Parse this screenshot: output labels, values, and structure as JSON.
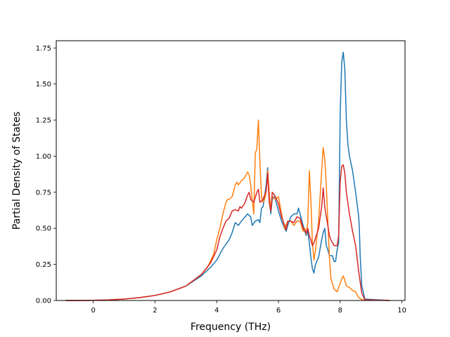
{
  "chart_data": {
    "type": "line",
    "title": "",
    "xlabel": "Frequency (THz)",
    "ylabel": "Partial Density of States",
    "xlim": [
      -1.2,
      10.1
    ],
    "ylim": [
      0,
      1.8
    ],
    "xticks": [
      0,
      2,
      4,
      6,
      8,
      10
    ],
    "xtick_labels": [
      "0",
      "2",
      "4",
      "6",
      "8",
      "10"
    ],
    "yticks": [
      0,
      0.25,
      0.5,
      0.75,
      1.0,
      1.25,
      1.5,
      1.75
    ],
    "ytick_labels": [
      "0.00",
      "0.25",
      "0.50",
      "0.75",
      "1.00",
      "1.25",
      "1.50",
      "1.75"
    ],
    "grid": false,
    "legend": "none",
    "series": [
      {
        "color": "#1f77b4",
        "points": [
          [
            -0.9,
            0
          ],
          [
            0,
            0.001
          ],
          [
            0.5,
            0.004
          ],
          [
            1.0,
            0.01
          ],
          [
            1.5,
            0.02
          ],
          [
            2.0,
            0.035
          ],
          [
            2.5,
            0.06
          ],
          [
            3.0,
            0.1
          ],
          [
            3.5,
            0.17
          ],
          [
            3.8,
            0.23
          ],
          [
            4.0,
            0.28
          ],
          [
            4.1,
            0.32
          ],
          [
            4.2,
            0.36
          ],
          [
            4.4,
            0.42
          ],
          [
            4.5,
            0.47
          ],
          [
            4.6,
            0.54
          ],
          [
            4.7,
            0.52
          ],
          [
            4.8,
            0.55
          ],
          [
            5.0,
            0.6
          ],
          [
            5.1,
            0.58
          ],
          [
            5.15,
            0.52
          ],
          [
            5.25,
            0.55
          ],
          [
            5.35,
            0.56
          ],
          [
            5.4,
            0.54
          ],
          [
            5.45,
            0.64
          ],
          [
            5.5,
            0.65
          ],
          [
            5.55,
            0.72
          ],
          [
            5.6,
            0.8
          ],
          [
            5.65,
            0.92
          ],
          [
            5.7,
            0.72
          ],
          [
            5.75,
            0.6
          ],
          [
            5.8,
            0.7
          ],
          [
            5.85,
            0.72
          ],
          [
            5.9,
            0.7
          ],
          [
            6.0,
            0.62
          ],
          [
            6.1,
            0.55
          ],
          [
            6.2,
            0.5
          ],
          [
            6.25,
            0.48
          ],
          [
            6.3,
            0.52
          ],
          [
            6.4,
            0.58
          ],
          [
            6.5,
            0.6
          ],
          [
            6.6,
            0.6
          ],
          [
            6.65,
            0.64
          ],
          [
            6.7,
            0.6
          ],
          [
            6.8,
            0.52
          ],
          [
            6.85,
            0.48
          ],
          [
            6.9,
            0.45
          ],
          [
            6.95,
            0.48
          ],
          [
            7.0,
            0.4
          ],
          [
            7.05,
            0.3
          ],
          [
            7.1,
            0.22
          ],
          [
            7.15,
            0.19
          ],
          [
            7.2,
            0.25
          ],
          [
            7.3,
            0.3
          ],
          [
            7.35,
            0.36
          ],
          [
            7.4,
            0.42
          ],
          [
            7.45,
            0.47
          ],
          [
            7.5,
            0.5
          ],
          [
            7.55,
            0.38
          ],
          [
            7.6,
            0.35
          ],
          [
            7.65,
            0.31
          ],
          [
            7.75,
            0.31
          ],
          [
            7.8,
            0.27
          ],
          [
            7.85,
            0.27
          ],
          [
            7.9,
            0.35
          ],
          [
            7.95,
            0.4
          ],
          [
            8.0,
            1.3
          ],
          [
            8.05,
            1.65
          ],
          [
            8.1,
            1.72
          ],
          [
            8.15,
            1.6
          ],
          [
            8.2,
            1.25
          ],
          [
            8.25,
            1.08
          ],
          [
            8.3,
            1.0
          ],
          [
            8.4,
            0.9
          ],
          [
            8.5,
            0.75
          ],
          [
            8.6,
            0.58
          ],
          [
            8.62,
            0.5
          ],
          [
            8.65,
            0.3
          ],
          [
            8.7,
            0.1
          ],
          [
            8.8,
            0.01
          ],
          [
            9.6,
            0
          ]
        ]
      },
      {
        "color": "#ff7f0e",
        "points": [
          [
            -0.9,
            0
          ],
          [
            0,
            0.001
          ],
          [
            0.5,
            0.004
          ],
          [
            1.0,
            0.01
          ],
          [
            1.5,
            0.02
          ],
          [
            2.0,
            0.035
          ],
          [
            2.5,
            0.06
          ],
          [
            3.0,
            0.1
          ],
          [
            3.5,
            0.18
          ],
          [
            3.7,
            0.23
          ],
          [
            3.9,
            0.32
          ],
          [
            4.0,
            0.42
          ],
          [
            4.1,
            0.5
          ],
          [
            4.2,
            0.6
          ],
          [
            4.3,
            0.68
          ],
          [
            4.35,
            0.7
          ],
          [
            4.4,
            0.7
          ],
          [
            4.5,
            0.72
          ],
          [
            4.6,
            0.8
          ],
          [
            4.65,
            0.82
          ],
          [
            4.7,
            0.8
          ],
          [
            4.8,
            0.83
          ],
          [
            4.9,
            0.85
          ],
          [
            4.95,
            0.87
          ],
          [
            5.0,
            0.89
          ],
          [
            5.05,
            0.87
          ],
          [
            5.1,
            0.8
          ],
          [
            5.15,
            0.7
          ],
          [
            5.2,
            0.6
          ],
          [
            5.25,
            1.02
          ],
          [
            5.3,
            1.05
          ],
          [
            5.35,
            1.25
          ],
          [
            5.4,
            0.95
          ],
          [
            5.45,
            0.72
          ],
          [
            5.5,
            0.68
          ],
          [
            5.55,
            0.7
          ],
          [
            5.6,
            0.75
          ],
          [
            5.65,
            0.9
          ],
          [
            5.7,
            0.75
          ],
          [
            5.75,
            0.62
          ],
          [
            5.8,
            0.72
          ],
          [
            5.9,
            0.7
          ],
          [
            6.0,
            0.72
          ],
          [
            6.1,
            0.6
          ],
          [
            6.2,
            0.5
          ],
          [
            6.3,
            0.55
          ],
          [
            6.4,
            0.55
          ],
          [
            6.5,
            0.52
          ],
          [
            6.6,
            0.55
          ],
          [
            6.7,
            0.55
          ],
          [
            6.8,
            0.48
          ],
          [
            6.85,
            0.5
          ],
          [
            6.9,
            0.46
          ],
          [
            6.95,
            0.54
          ],
          [
            7.0,
            0.9
          ],
          [
            7.05,
            0.7
          ],
          [
            7.1,
            0.4
          ],
          [
            7.15,
            0.28
          ],
          [
            7.2,
            0.35
          ],
          [
            7.3,
            0.55
          ],
          [
            7.4,
            0.9
          ],
          [
            7.45,
            1.06
          ],
          [
            7.5,
            0.98
          ],
          [
            7.55,
            0.8
          ],
          [
            7.6,
            0.55
          ],
          [
            7.65,
            0.3
          ],
          [
            7.7,
            0.15
          ],
          [
            7.8,
            0.08
          ],
          [
            7.9,
            0.06
          ],
          [
            8.0,
            0.12
          ],
          [
            8.05,
            0.15
          ],
          [
            8.1,
            0.17
          ],
          [
            8.15,
            0.14
          ],
          [
            8.2,
            0.1
          ],
          [
            8.3,
            0.09
          ],
          [
            8.4,
            0.07
          ],
          [
            8.5,
            0.06
          ],
          [
            8.6,
            0.02
          ],
          [
            8.7,
            0.005
          ],
          [
            9.6,
            0
          ]
        ]
      },
      {
        "color": "#d62728",
        "points": [
          [
            -0.9,
            0
          ],
          [
            0,
            0.001
          ],
          [
            0.5,
            0.004
          ],
          [
            1.0,
            0.01
          ],
          [
            1.5,
            0.02
          ],
          [
            2.0,
            0.035
          ],
          [
            2.5,
            0.06
          ],
          [
            3.0,
            0.1
          ],
          [
            3.5,
            0.18
          ],
          [
            3.8,
            0.26
          ],
          [
            4.0,
            0.35
          ],
          [
            4.1,
            0.44
          ],
          [
            4.2,
            0.5
          ],
          [
            4.3,
            0.55
          ],
          [
            4.4,
            0.57
          ],
          [
            4.5,
            0.62
          ],
          [
            4.6,
            0.63
          ],
          [
            4.7,
            0.62
          ],
          [
            4.75,
            0.65
          ],
          [
            4.8,
            0.64
          ],
          [
            4.9,
            0.67
          ],
          [
            5.0,
            0.73
          ],
          [
            5.05,
            0.75
          ],
          [
            5.1,
            0.7
          ],
          [
            5.2,
            0.68
          ],
          [
            5.3,
            0.75
          ],
          [
            5.35,
            0.77
          ],
          [
            5.4,
            0.68
          ],
          [
            5.5,
            0.7
          ],
          [
            5.6,
            0.76
          ],
          [
            5.65,
            0.88
          ],
          [
            5.7,
            0.68
          ],
          [
            5.75,
            0.62
          ],
          [
            5.8,
            0.75
          ],
          [
            5.9,
            0.72
          ],
          [
            6.0,
            0.67
          ],
          [
            6.1,
            0.58
          ],
          [
            6.2,
            0.52
          ],
          [
            6.25,
            0.49
          ],
          [
            6.3,
            0.55
          ],
          [
            6.4,
            0.55
          ],
          [
            6.5,
            0.54
          ],
          [
            6.6,
            0.58
          ],
          [
            6.7,
            0.57
          ],
          [
            6.8,
            0.5
          ],
          [
            6.9,
            0.47
          ],
          [
            6.95,
            0.5
          ],
          [
            7.0,
            0.45
          ],
          [
            7.05,
            0.42
          ],
          [
            7.1,
            0.38
          ],
          [
            7.15,
            0.4
          ],
          [
            7.3,
            0.5
          ],
          [
            7.4,
            0.65
          ],
          [
            7.45,
            0.78
          ],
          [
            7.5,
            0.65
          ],
          [
            7.55,
            0.58
          ],
          [
            7.6,
            0.52
          ],
          [
            7.65,
            0.45
          ],
          [
            7.7,
            0.42
          ],
          [
            7.8,
            0.38
          ],
          [
            7.9,
            0.38
          ],
          [
            7.95,
            0.45
          ],
          [
            8.0,
            0.82
          ],
          [
            8.05,
            0.93
          ],
          [
            8.1,
            0.94
          ],
          [
            8.15,
            0.88
          ],
          [
            8.2,
            0.75
          ],
          [
            8.3,
            0.6
          ],
          [
            8.4,
            0.48
          ],
          [
            8.5,
            0.38
          ],
          [
            8.6,
            0.2
          ],
          [
            8.7,
            0.05
          ],
          [
            8.8,
            0.005
          ],
          [
            9.6,
            0
          ]
        ]
      }
    ]
  }
}
